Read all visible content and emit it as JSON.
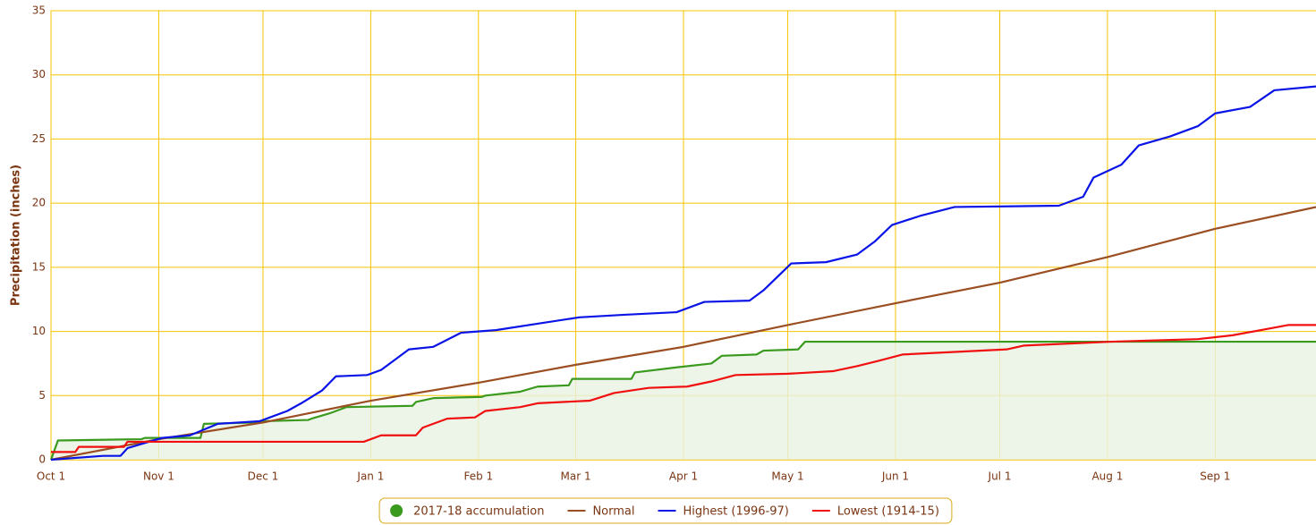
{
  "chart_data": {
    "type": "line",
    "y_label": "Precipitation (inches)",
    "xlim": [
      0,
      364
    ],
    "ylim": [
      0,
      35
    ],
    "xticks": [
      {
        "value": 0,
        "label": "Oct 1"
      },
      {
        "value": 31,
        "label": "Nov 1"
      },
      {
        "value": 61,
        "label": "Dec 1"
      },
      {
        "value": 92,
        "label": "Jan 1"
      },
      {
        "value": 123,
        "label": "Feb 1"
      },
      {
        "value": 151,
        "label": "Mar 1"
      },
      {
        "value": 182,
        "label": "Apr 1"
      },
      {
        "value": 212,
        "label": "May 1"
      },
      {
        "value": 243,
        "label": "Jun 1"
      },
      {
        "value": 273,
        "label": "Jul 1"
      },
      {
        "value": 304,
        "label": "Aug 1"
      },
      {
        "value": 335,
        "label": "Sep 1"
      }
    ],
    "yticks": [
      0,
      5,
      10,
      15,
      20,
      25,
      30,
      35
    ],
    "grid": true,
    "grid_color": "#f5c400",
    "legend": "bottom",
    "series": [
      {
        "name": "2017-18 accumulation",
        "color": "#3a9a1e",
        "area_color": "#e9f3e3",
        "legend_symbol": "circle",
        "x": [
          0,
          2,
          26,
          27,
          43,
          44,
          59,
          60,
          74,
          75,
          80,
          85,
          104,
          105,
          110,
          124,
          125,
          135,
          140,
          149,
          150,
          167,
          168,
          180,
          190,
          193,
          203,
          205,
          215,
          217,
          364
        ],
        "values": [
          0,
          1.5,
          1.6,
          1.7,
          1.7,
          2.8,
          2.9,
          3.0,
          3.1,
          3.2,
          3.6,
          4.1,
          4.2,
          4.5,
          4.8,
          4.9,
          5.0,
          5.3,
          5.7,
          5.8,
          6.3,
          6.3,
          6.8,
          7.2,
          7.5,
          8.1,
          8.2,
          8.5,
          8.6,
          9.2,
          9.2
        ]
      },
      {
        "name": "Normal",
        "color": "#9a4e22",
        "legend_symbol": "line",
        "x": [
          0,
          31,
          61,
          92,
          123,
          151,
          182,
          212,
          243,
          273,
          304,
          335,
          364
        ],
        "values": [
          0,
          1.6,
          2.9,
          4.6,
          6.0,
          7.4,
          8.8,
          10.5,
          12.2,
          13.8,
          15.8,
          18.0,
          19.7
        ]
      },
      {
        "name": "Highest (1996-97)",
        "color": "#0a14e6",
        "legend_symbol": "line",
        "x": [
          0,
          15,
          20,
          22,
          32,
          40,
          48,
          60,
          63,
          68,
          72,
          78,
          82,
          91,
          95,
          103,
          110,
          118,
          128,
          140,
          152,
          165,
          180,
          188,
          201,
          205,
          213,
          223,
          232,
          237,
          242,
          250,
          260,
          290,
          297,
          300,
          308,
          313,
          322,
          330,
          335,
          345,
          352,
          364
        ],
        "values": [
          0,
          0.3,
          0.3,
          0.9,
          1.7,
          1.9,
          2.8,
          3.0,
          3.3,
          3.8,
          4.4,
          5.4,
          6.5,
          6.6,
          7.0,
          8.6,
          8.8,
          9.9,
          10.1,
          10.6,
          11.1,
          11.3,
          11.5,
          12.3,
          12.4,
          13.2,
          15.3,
          15.4,
          16.0,
          17.0,
          18.3,
          19.0,
          19.7,
          19.8,
          20.5,
          22.0,
          23.0,
          24.5,
          25.2,
          26.0,
          27.0,
          27.5,
          28.8,
          29.1
        ]
      },
      {
        "name": "Lowest (1914-15)",
        "color": "#f01010",
        "legend_symbol": "line",
        "x": [
          0,
          7,
          8,
          21,
          22,
          90,
          95,
          105,
          107,
          114,
          122,
          125,
          135,
          140,
          155,
          162,
          172,
          183,
          190,
          197,
          212,
          225,
          232,
          238,
          245,
          260,
          275,
          280,
          305,
          330,
          340,
          356,
          364
        ],
        "values": [
          0.6,
          0.6,
          1.0,
          1.0,
          1.4,
          1.4,
          1.9,
          1.9,
          2.5,
          3.2,
          3.3,
          3.8,
          4.1,
          4.4,
          4.6,
          5.2,
          5.6,
          5.7,
          6.1,
          6.6,
          6.7,
          6.9,
          7.3,
          7.7,
          8.2,
          8.4,
          8.6,
          8.9,
          9.2,
          9.4,
          9.7,
          10.5,
          10.5
        ]
      }
    ]
  }
}
